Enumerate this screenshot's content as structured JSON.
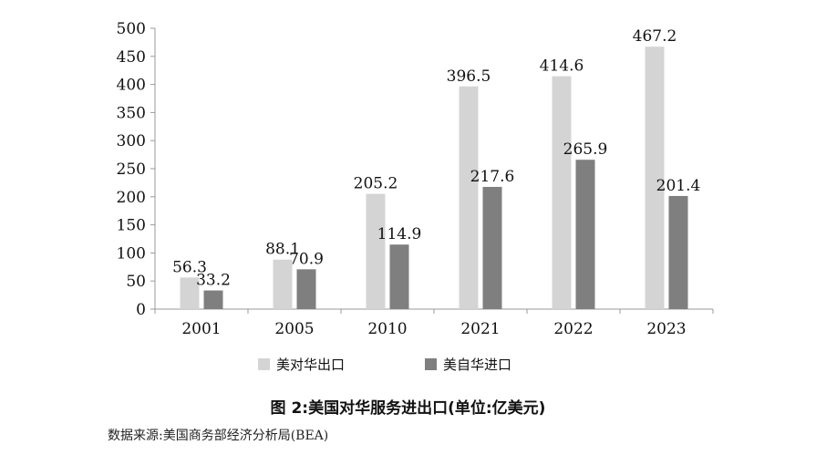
{
  "chart_data": {
    "type": "bar",
    "categories": [
      "2001",
      "2005",
      "2010",
      "2021",
      "2022",
      "2023"
    ],
    "series": [
      {
        "name": "美对华出口",
        "values": [
          56.3,
          88.1,
          205.2,
          396.5,
          414.6,
          467.2
        ],
        "color": "#d4d4d4"
      },
      {
        "name": "美自华进口",
        "values": [
          33.2,
          70.9,
          114.9,
          217.6,
          265.9,
          201.4
        ],
        "color": "#7f7f7f"
      }
    ],
    "y_ticks": [
      "0",
      "50",
      "100",
      "150",
      "200",
      "250",
      "300",
      "350",
      "400",
      "450",
      "500"
    ],
    "data_labels": [
      [
        "56.3",
        "88.1",
        "205.2",
        "396.5",
        "414.6",
        "467.2"
      ],
      [
        "33.2",
        "70.9",
        "114.9",
        "217.6",
        "265.9",
        "201.4"
      ]
    ],
    "ylim": [
      0,
      500
    ],
    "grid": false,
    "legend_position": "bottom"
  },
  "caption": "图 2:美国对华服务进出口(单位:亿美元)",
  "source": "数据来源:美国商务部经济分析局(BEA)"
}
